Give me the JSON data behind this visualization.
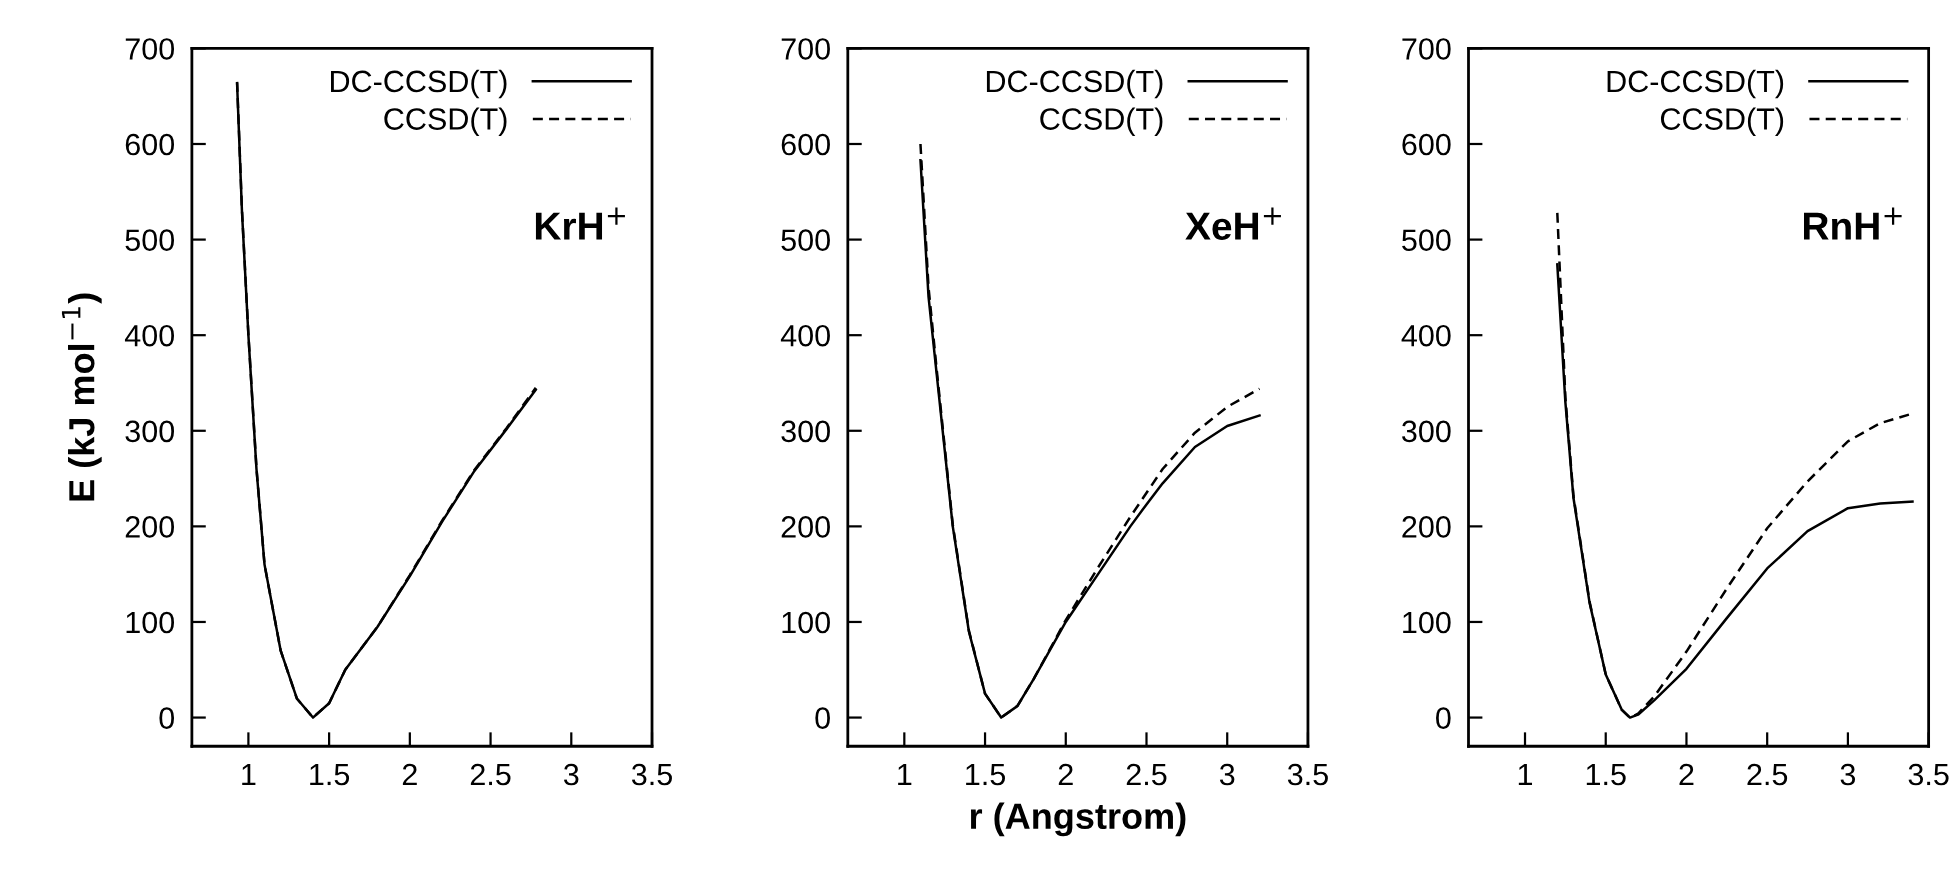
{
  "chart_data": [
    {
      "type": "line",
      "ylabel": "E (kJ mol$^{−1}$)",
      "annotations": [
        "KrH$^{+}$"
      ],
      "xlim": [
        0.65,
        3.5
      ],
      "ylim": [
        -30,
        700
      ],
      "xticks": [
        1,
        1.5,
        2,
        2.5,
        3,
        3.5
      ],
      "yticks": [
        0,
        100,
        200,
        300,
        400,
        500,
        600,
        700
      ],
      "legend": "top right",
      "grid": false,
      "series": [
        {
          "name": "DC-CCSD(T)",
          "color": "#000000",
          "line_style": "solid",
          "x": [
            0.93,
            0.96,
            1.0,
            1.05,
            1.1,
            1.2,
            1.3,
            1.4,
            1.5,
            1.6,
            1.8,
            2.0,
            2.2,
            2.4,
            2.6,
            2.78
          ],
          "values": [
            663,
            530,
            400,
            260,
            160,
            70,
            20,
            0,
            15,
            50,
            95,
            148,
            205,
            258,
            302,
            343
          ]
        },
        {
          "name": "CCSD(T)",
          "color": "#000000",
          "line_style": "dashed",
          "x": [
            0.93,
            0.96,
            1.0,
            1.05,
            1.1,
            1.2,
            1.3,
            1.4,
            1.5,
            1.6,
            1.8,
            2.0,
            2.2,
            2.4,
            2.6,
            2.78
          ],
          "values": [
            665,
            532,
            401,
            261,
            160,
            70,
            20,
            0,
            15,
            50,
            95,
            149,
            206,
            259,
            303,
            345
          ]
        }
      ]
    },
    {
      "type": "line",
      "xlabel": "r (Angstrom)",
      "annotations": [
        "XeH$^{+}$"
      ],
      "xlim": [
        0.65,
        3.5
      ],
      "ylim": [
        -30,
        700
      ],
      "xticks": [
        1,
        1.5,
        2,
        2.5,
        3,
        3.5
      ],
      "yticks": [
        0,
        100,
        200,
        300,
        400,
        500,
        600,
        700
      ],
      "legend": "top right",
      "grid": false,
      "series": [
        {
          "name": "DC-CCSD(T)",
          "color": "#000000",
          "line_style": "solid",
          "x": [
            1.1,
            1.15,
            1.2,
            1.3,
            1.4,
            1.5,
            1.6,
            1.7,
            1.8,
            2.0,
            2.2,
            2.4,
            2.5,
            2.6,
            2.8,
            3.0,
            3.2
          ],
          "values": [
            583,
            440,
            360,
            200,
            90,
            25,
            0,
            12,
            40,
            100,
            150,
            200,
            223,
            245,
            283,
            305,
            316
          ]
        },
        {
          "name": "CCSD(T)",
          "color": "#000000",
          "line_style": "dashed",
          "x": [
            1.1,
            1.15,
            1.2,
            1.3,
            1.4,
            1.5,
            1.6,
            1.7,
            1.8,
            2.0,
            2.2,
            2.4,
            2.6,
            2.8,
            3.0,
            3.2
          ],
          "values": [
            600,
            450,
            365,
            202,
            91,
            25,
            0,
            12,
            40,
            102,
            157,
            210,
            260,
            298,
            325,
            344
          ]
        }
      ]
    },
    {
      "type": "line",
      "annotations": [
        "RnH$^{+}$"
      ],
      "xlim": [
        0.65,
        3.5
      ],
      "ylim": [
        -30,
        700
      ],
      "xticks": [
        1,
        1.5,
        2,
        2.5,
        3,
        3.5
      ],
      "yticks": [
        0,
        100,
        200,
        300,
        400,
        500,
        600,
        700
      ],
      "legend": "top right",
      "grid": false,
      "series": [
        {
          "name": "DC-CCSD(T)",
          "color": "#000000",
          "line_style": "solid",
          "x": [
            1.2,
            1.25,
            1.3,
            1.4,
            1.5,
            1.6,
            1.65,
            1.7,
            1.8,
            2.0,
            2.25,
            2.5,
            2.75,
            3.0,
            3.2,
            3.4
          ],
          "values": [
            474,
            330,
            230,
            120,
            45,
            8,
            0,
            3,
            18,
            51,
            104,
            156,
            195,
            219,
            224,
            226
          ]
        },
        {
          "name": "CCSD(T)",
          "color": "#000000",
          "line_style": "dashed",
          "x": [
            1.2,
            1.25,
            1.3,
            1.4,
            1.5,
            1.6,
            1.65,
            1.7,
            1.8,
            2.0,
            2.25,
            2.5,
            2.75,
            3.0,
            3.2,
            3.4
          ],
          "values": [
            528,
            335,
            232,
            121,
            45,
            8,
            0,
            4,
            22,
            69,
            135,
            198,
            247,
            289,
            308,
            318
          ]
        }
      ]
    }
  ]
}
